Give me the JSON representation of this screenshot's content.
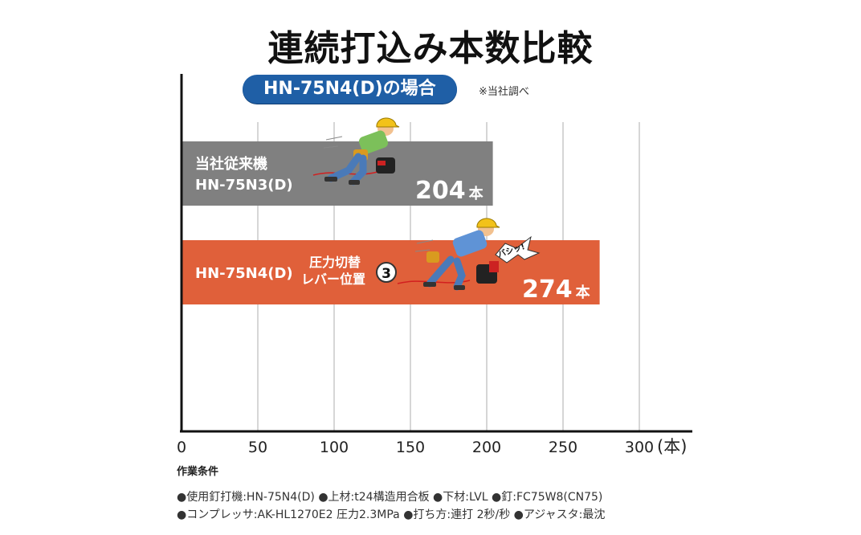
{
  "title": "連続打込み本数比較",
  "subtitle_pill": "HN-75N4(D)の場合",
  "note": "※当社調べ",
  "chart_data": {
    "type": "bar",
    "orientation": "horizontal",
    "x_ticks": [
      "0",
      "50",
      "100",
      "150",
      "200",
      "250",
      "300"
    ],
    "x_unit": "(本)",
    "xlim": [
      0,
      300
    ],
    "grid": true,
    "bars": [
      {
        "label_line1": "当社従来機",
        "label_line2": "HN-75N3(D)",
        "value": 204,
        "value_label": "204",
        "value_unit": "本",
        "color": "#808080"
      },
      {
        "label_line1": "HN-75N4(D)",
        "label_line2": "",
        "value": 274,
        "value_label": "274",
        "value_unit": "本",
        "color": "#e0603a"
      }
    ],
    "annotation": {
      "line1": "圧力切替",
      "line2": "レバー位置",
      "circle": "3"
    },
    "burst_text": "バシッ!"
  },
  "conditions": {
    "title": "作業条件",
    "line1": "●使用釘打機:HN-75N4(D) ●上材:t24構造用合板 ●下材:LVL ●釘:FC75W8(CN75)",
    "line2": "●コンプレッサ:AK-HL1270E2 圧力2.3MPa ●打ち方:連打 2秒/秒 ●アジャスタ:最沈"
  }
}
